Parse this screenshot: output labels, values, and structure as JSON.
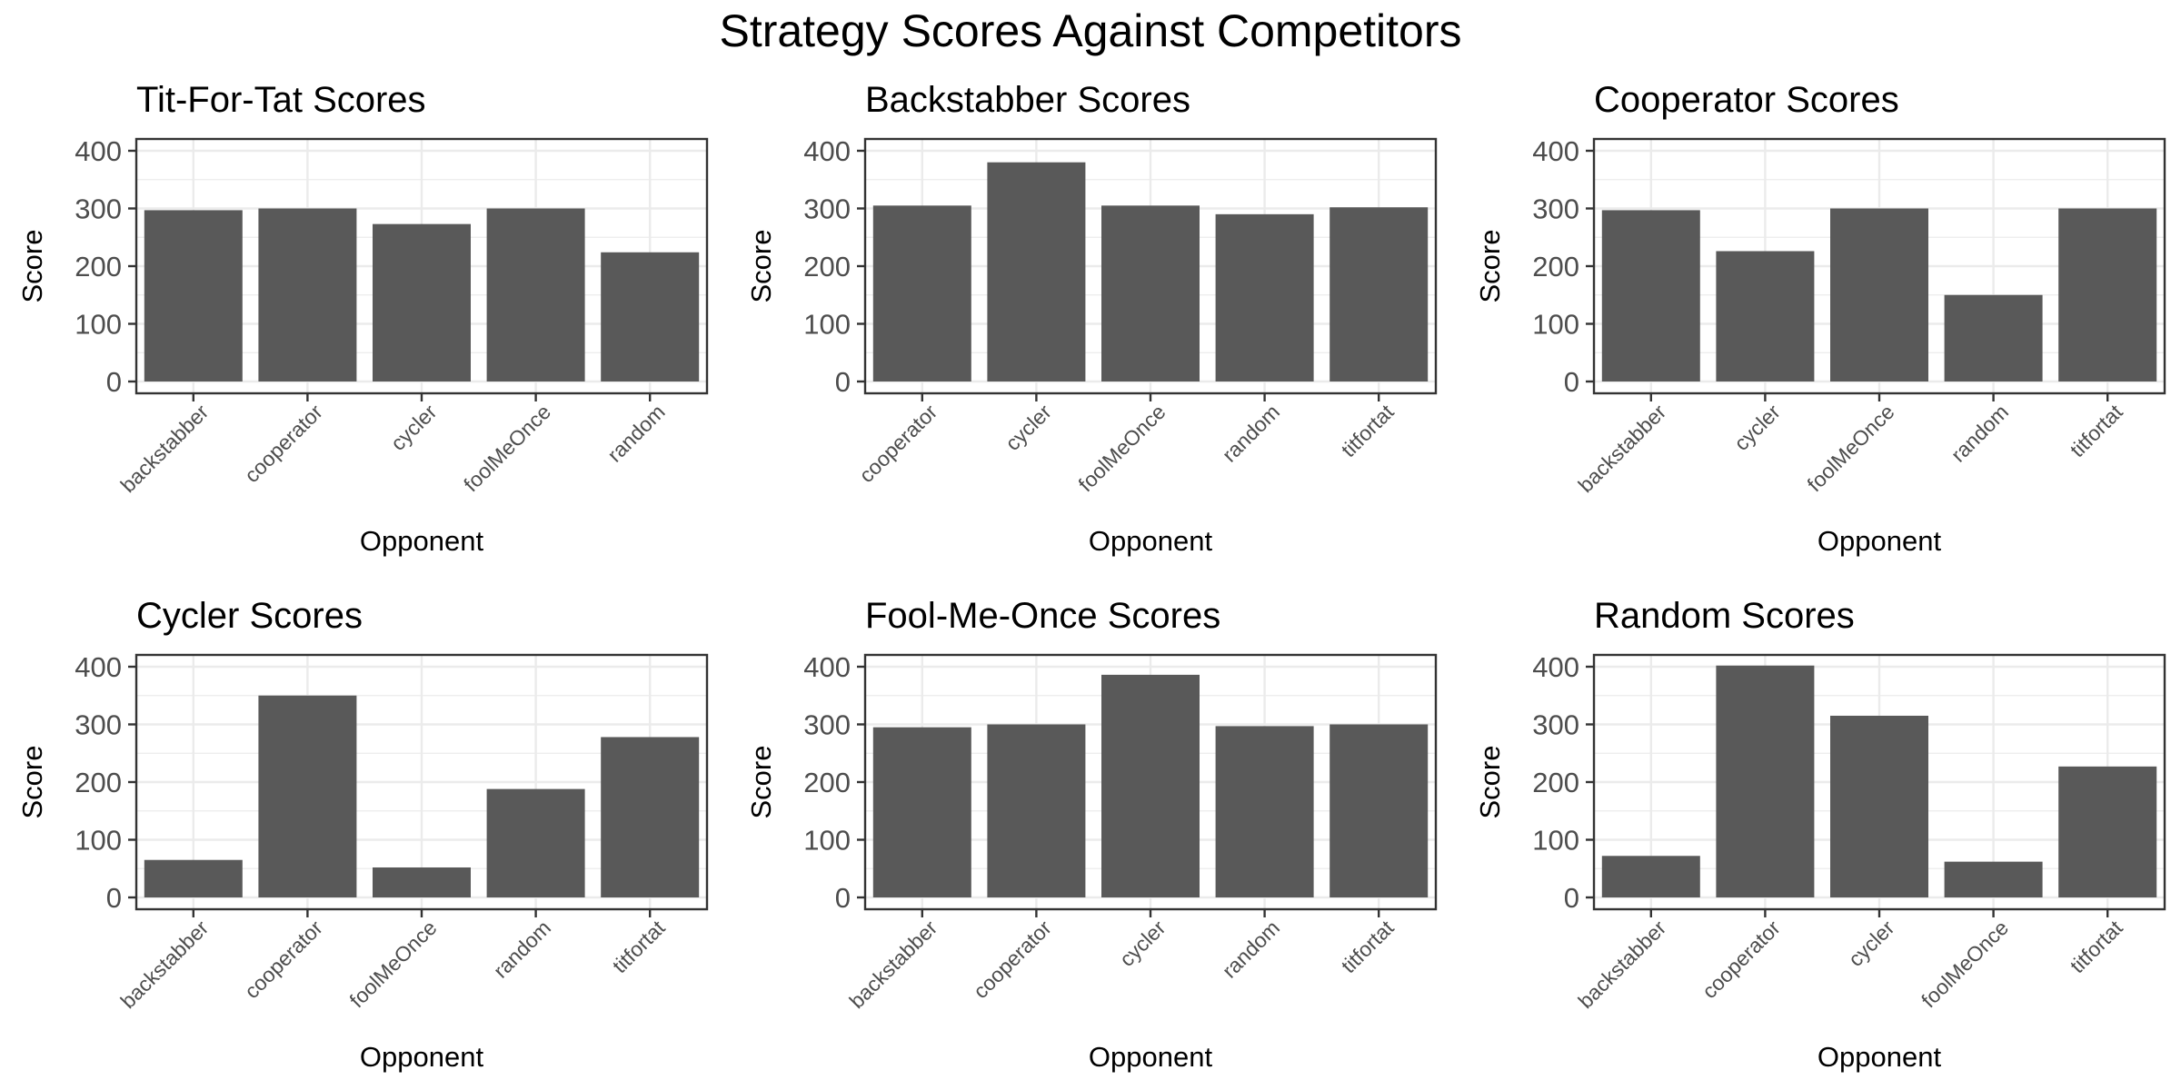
{
  "figure": {
    "title": "Strategy Scores Against Competitors"
  },
  "chart_data": [
    {
      "type": "bar",
      "title": "Tit-For-Tat Scores",
      "xlabel": "Opponent",
      "ylabel": "Score",
      "ylim": [
        0,
        400
      ],
      "yticks": [
        "0",
        "100",
        "200",
        "300",
        "400"
      ],
      "categories": [
        "backstabber",
        "cooperator",
        "cycler",
        "foolMeOnce",
        "random"
      ],
      "values": [
        297,
        300,
        273,
        300,
        224
      ]
    },
    {
      "type": "bar",
      "title": "Backstabber Scores",
      "xlabel": "Opponent",
      "ylabel": "Score",
      "ylim": [
        0,
        400
      ],
      "yticks": [
        "0",
        "100",
        "200",
        "300",
        "400"
      ],
      "categories": [
        "cooperator",
        "cycler",
        "foolMeOnce",
        "random",
        "titfortat"
      ],
      "values": [
        305,
        380,
        305,
        290,
        302
      ]
    },
    {
      "type": "bar",
      "title": "Cooperator Scores",
      "xlabel": "Opponent",
      "ylabel": "Score",
      "ylim": [
        0,
        400
      ],
      "yticks": [
        "0",
        "100",
        "200",
        "300",
        "400"
      ],
      "categories": [
        "backstabber",
        "cycler",
        "foolMeOnce",
        "random",
        "titfortat"
      ],
      "values": [
        297,
        226,
        300,
        150,
        300
      ]
    },
    {
      "type": "bar",
      "title": "Cycler Scores",
      "xlabel": "Opponent",
      "ylabel": "Score",
      "ylim": [
        0,
        400
      ],
      "yticks": [
        "0",
        "100",
        "200",
        "300",
        "400"
      ],
      "categories": [
        "backstabber",
        "cooperator",
        "foolMeOnce",
        "random",
        "titfortat"
      ],
      "values": [
        65,
        350,
        52,
        188,
        278
      ]
    },
    {
      "type": "bar",
      "title": "Fool-Me-Once Scores",
      "xlabel": "Opponent",
      "ylabel": "Score",
      "ylim": [
        0,
        400
      ],
      "yticks": [
        "0",
        "100",
        "200",
        "300",
        "400"
      ],
      "categories": [
        "backstabber",
        "cooperator",
        "cycler",
        "random",
        "titfortat"
      ],
      "values": [
        295,
        300,
        386,
        297,
        300
      ]
    },
    {
      "type": "bar",
      "title": "Random Scores",
      "xlabel": "Opponent",
      "ylabel": "Score",
      "ylim": [
        0,
        400
      ],
      "yticks": [
        "0",
        "100",
        "200",
        "300",
        "400"
      ],
      "categories": [
        "backstabber",
        "cooperator",
        "cycler",
        "foolMeOnce",
        "titfortat"
      ],
      "values": [
        72,
        402,
        315,
        62,
        227
      ]
    }
  ]
}
